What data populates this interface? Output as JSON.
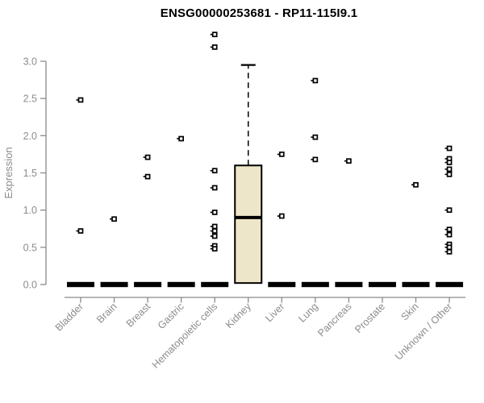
{
  "title": "ENSG00000253681 - RP11-115I9.1",
  "colors": {
    "box_fill": "#EDE6C8",
    "marker": "#000000",
    "axis": "#8A8A8A",
    "tick_label": "#8C8C8C",
    "title": "#000000",
    "background": "#FFFFFF"
  },
  "chart_data": {
    "type": "boxplot",
    "title": "ENSG00000253681 - RP11-115I9.1",
    "xlabel": "",
    "ylabel": "Expression",
    "ylim": [
      0.0,
      3.0
    ],
    "yticks": [
      0.0,
      0.5,
      1.0,
      1.5,
      2.0,
      2.5,
      3.0
    ],
    "grid": false,
    "legend": null,
    "categories": [
      "Bladder",
      "Brain",
      "Breast",
      "Gastric",
      "Hematopoietic cells",
      "Kidney",
      "Liver",
      "Lung",
      "Pancreas",
      "Prostate",
      "Skin",
      "Unknown / Other"
    ],
    "boxes": [
      {
        "category": "Bladder",
        "collapsed_at_zero": true
      },
      {
        "category": "Brain",
        "collapsed_at_zero": true
      },
      {
        "category": "Breast",
        "collapsed_at_zero": true
      },
      {
        "category": "Gastric",
        "collapsed_at_zero": true
      },
      {
        "category": "Hematopoietic cells",
        "collapsed_at_zero": true
      },
      {
        "category": "Kidney",
        "collapsed_at_zero": false,
        "q1": 0.02,
        "median": 0.9,
        "q3": 1.6,
        "whisker_low": 0.02,
        "whisker_high": 2.95
      },
      {
        "category": "Liver",
        "collapsed_at_zero": true
      },
      {
        "category": "Lung",
        "collapsed_at_zero": true
      },
      {
        "category": "Pancreas",
        "collapsed_at_zero": true
      },
      {
        "category": "Prostate",
        "collapsed_at_zero": true
      },
      {
        "category": "Skin",
        "collapsed_at_zero": true
      },
      {
        "category": "Unknown / Other",
        "collapsed_at_zero": true
      }
    ],
    "points": [
      {
        "category": "Bladder",
        "values": [
          2.48,
          0.72
        ]
      },
      {
        "category": "Brain",
        "values": [
          0.88
        ]
      },
      {
        "category": "Breast",
        "values": [
          1.71,
          1.45
        ]
      },
      {
        "category": "Gastric",
        "values": [
          1.96
        ]
      },
      {
        "category": "Hematopoietic cells",
        "values": [
          3.36,
          3.19,
          1.53,
          1.3,
          0.97,
          0.78,
          0.72,
          0.65,
          0.52,
          0.48
        ]
      },
      {
        "category": "Kidney",
        "values": []
      },
      {
        "category": "Liver",
        "values": [
          1.75,
          0.92
        ]
      },
      {
        "category": "Lung",
        "values": [
          2.74,
          1.98,
          1.68
        ]
      },
      {
        "category": "Pancreas",
        "values": [
          1.66
        ]
      },
      {
        "category": "Prostate",
        "values": []
      },
      {
        "category": "Skin",
        "values": [
          1.34
        ]
      },
      {
        "category": "Unknown / Other",
        "values": [
          1.83,
          1.69,
          1.64,
          1.55,
          1.48,
          1.0,
          0.74,
          0.67,
          0.54,
          0.5,
          0.44
        ]
      }
    ]
  }
}
